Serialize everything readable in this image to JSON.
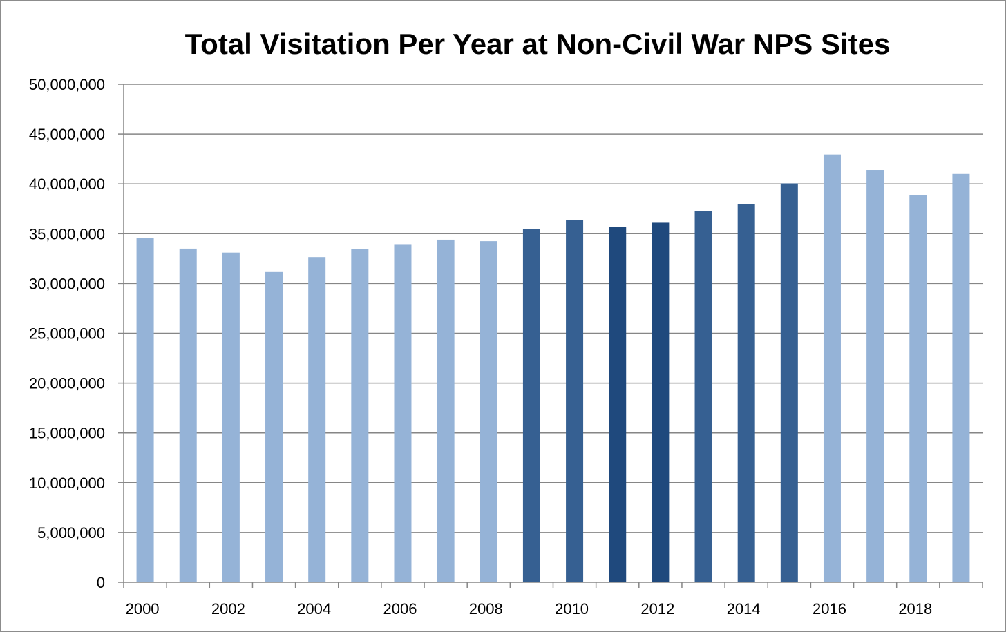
{
  "chart_data": {
    "type": "bar",
    "title": "Total Visitation Per Year at Non-Civil War NPS Sites",
    "xlabel": "",
    "ylabel": "",
    "categories": [
      "2000",
      "2001",
      "2002",
      "2003",
      "2004",
      "2005",
      "2006",
      "2007",
      "2008",
      "2009",
      "2010",
      "2011",
      "2012",
      "2013",
      "2014",
      "2015",
      "2016",
      "2017",
      "2018",
      "2019"
    ],
    "x_tick_labels": [
      "2000",
      "",
      "2002",
      "",
      "2004",
      "",
      "2006",
      "",
      "2008",
      "",
      "2010",
      "",
      "2012",
      "",
      "2014",
      "",
      "2016",
      "",
      "2018",
      ""
    ],
    "values": [
      34550000,
      33500000,
      33100000,
      31150000,
      32650000,
      33450000,
      33950000,
      34400000,
      34250000,
      35500000,
      36350000,
      35700000,
      36100000,
      37300000,
      37950000,
      40050000,
      42950000,
      41400000,
      38900000,
      41000000
    ],
    "bar_colors": [
      "#95b3d7",
      "#95b3d7",
      "#95b3d7",
      "#95b3d7",
      "#95b3d7",
      "#95b3d7",
      "#95b3d7",
      "#95b3d7",
      "#95b3d7",
      "#366092",
      "#366092",
      "#1f497d",
      "#1f497d",
      "#366092",
      "#366092",
      "#366092",
      "#95b3d7",
      "#95b3d7",
      "#95b3d7",
      "#95b3d7"
    ],
    "ylim": [
      0,
      50000000
    ],
    "y_ticks": [
      0,
      5000000,
      10000000,
      15000000,
      20000000,
      25000000,
      30000000,
      35000000,
      40000000,
      45000000,
      50000000
    ],
    "y_tick_labels": [
      "0",
      "5,000,000",
      "10,000,000",
      "15,000,000",
      "20,000,000",
      "25,000,000",
      "30,000,000",
      "35,000,000",
      "40,000,000",
      "45,000,000",
      "50,000,000"
    ],
    "grid": true,
    "legend": "none",
    "gridline_color": "#868686",
    "axis_color": "#868686"
  }
}
